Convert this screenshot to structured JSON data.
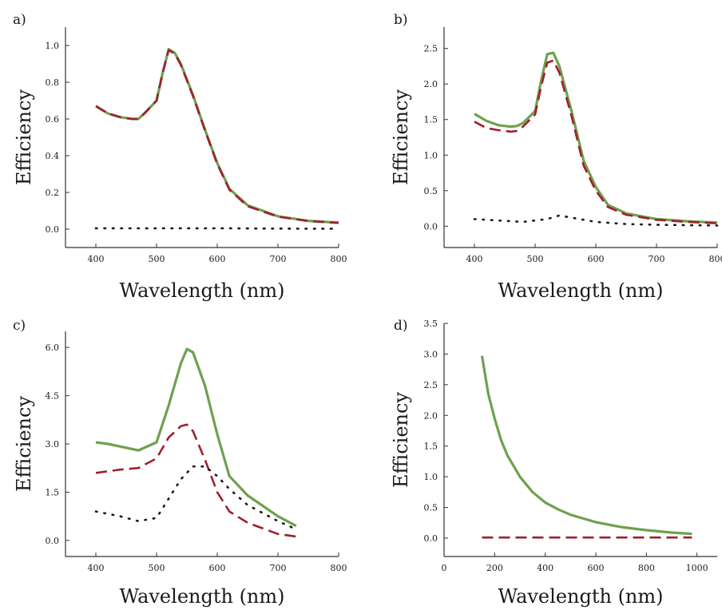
{
  "colors": {
    "solid": "#6fa04f",
    "dashed": "#a01e2e",
    "dotted": "#1a1a1a",
    "axis": "#333333"
  },
  "chart_data": [
    {
      "panel": "a)",
      "type": "line",
      "xlabel": "Wavelength (nm)",
      "ylabel": "Efficiency",
      "xlim": [
        350,
        800
      ],
      "ylim": [
        -0.1,
        1.1
      ],
      "xticks": [
        "400",
        "500",
        "600",
        "700",
        "800"
      ],
      "yticks": [
        "0.0",
        "0.2",
        "0.4",
        "0.6",
        "0.8",
        "1.0"
      ],
      "series": [
        {
          "style": "solid",
          "x": [
            400,
            420,
            440,
            460,
            470,
            480,
            500,
            510,
            520,
            530,
            540,
            560,
            580,
            600,
            620,
            650,
            700,
            750,
            800
          ],
          "y": [
            0.67,
            0.63,
            0.61,
            0.6,
            0.6,
            0.63,
            0.7,
            0.85,
            0.98,
            0.96,
            0.9,
            0.73,
            0.54,
            0.36,
            0.22,
            0.13,
            0.07,
            0.045,
            0.035
          ]
        },
        {
          "style": "dashed",
          "x": [
            400,
            420,
            440,
            460,
            470,
            480,
            500,
            510,
            520,
            530,
            540,
            560,
            580,
            600,
            620,
            650,
            700,
            750,
            800
          ],
          "y": [
            0.67,
            0.63,
            0.61,
            0.6,
            0.6,
            0.63,
            0.7,
            0.85,
            0.975,
            0.955,
            0.895,
            0.725,
            0.535,
            0.355,
            0.215,
            0.125,
            0.068,
            0.044,
            0.034
          ]
        },
        {
          "style": "dotted",
          "x": [
            400,
            500,
            600,
            700,
            800
          ],
          "y": [
            0.005,
            0.005,
            0.005,
            0.003,
            0.002
          ]
        }
      ]
    },
    {
      "panel": "b)",
      "type": "line",
      "xlabel": "Wavelength (nm)",
      "ylabel": "Efficiency",
      "xlim": [
        350,
        800
      ],
      "ylim": [
        -0.3,
        2.8
      ],
      "xticks": [
        "400",
        "500",
        "600",
        "700",
        "800"
      ],
      "yticks": [
        "0.0",
        "0.5",
        "1.0",
        "1.5",
        "2.0",
        "2.5"
      ],
      "series": [
        {
          "style": "solid",
          "x": [
            400,
            420,
            440,
            460,
            470,
            480,
            500,
            510,
            520,
            530,
            540,
            560,
            580,
            600,
            620,
            650,
            700,
            750,
            800
          ],
          "y": [
            1.58,
            1.48,
            1.42,
            1.4,
            1.41,
            1.45,
            1.62,
            2.05,
            2.42,
            2.44,
            2.25,
            1.62,
            0.92,
            0.55,
            0.3,
            0.18,
            0.1,
            0.07,
            0.05
          ]
        },
        {
          "style": "dashed",
          "x": [
            400,
            420,
            440,
            460,
            470,
            480,
            500,
            510,
            520,
            530,
            540,
            560,
            580,
            600,
            620,
            650,
            700,
            750,
            800
          ],
          "y": [
            1.47,
            1.38,
            1.35,
            1.33,
            1.34,
            1.4,
            1.57,
            1.97,
            2.3,
            2.33,
            2.16,
            1.55,
            0.85,
            0.5,
            0.27,
            0.16,
            0.09,
            0.06,
            0.04
          ]
        },
        {
          "style": "dotted",
          "x": [
            400,
            440,
            480,
            520,
            540,
            560,
            600,
            650,
            700,
            750,
            800
          ],
          "y": [
            0.1,
            0.08,
            0.06,
            0.1,
            0.15,
            0.12,
            0.06,
            0.03,
            0.02,
            0.015,
            0.01
          ]
        }
      ]
    },
    {
      "panel": "c)",
      "type": "line",
      "xlabel": "Wavelength (nm)",
      "ylabel": "Efficiency",
      "xlim": [
        350,
        800
      ],
      "ylim": [
        -0.5,
        6.5
      ],
      "xticks": [
        "400",
        "500",
        "600",
        "700",
        "800"
      ],
      "yticks": [
        "0.0",
        "1.5",
        "3.0",
        "4.5",
        "6.0"
      ],
      "series": [
        {
          "style": "solid",
          "x": [
            400,
            420,
            440,
            470,
            500,
            520,
            540,
            550,
            560,
            580,
            600,
            620,
            650,
            700,
            730
          ],
          "y": [
            3.05,
            3.0,
            2.92,
            2.8,
            3.05,
            4.2,
            5.5,
            5.95,
            5.85,
            4.8,
            3.3,
            2.0,
            1.4,
            0.75,
            0.45
          ]
        },
        {
          "style": "dashed",
          "x": [
            400,
            440,
            470,
            500,
            520,
            540,
            550,
            560,
            580,
            600,
            620,
            650,
            700,
            730
          ],
          "y": [
            2.1,
            2.2,
            2.25,
            2.55,
            3.2,
            3.55,
            3.6,
            3.4,
            2.5,
            1.5,
            0.9,
            0.55,
            0.2,
            0.12
          ]
        },
        {
          "style": "dotted",
          "x": [
            400,
            440,
            470,
            500,
            520,
            540,
            560,
            580,
            600,
            620,
            650,
            700,
            730
          ],
          "y": [
            0.9,
            0.75,
            0.6,
            0.7,
            1.3,
            1.9,
            2.3,
            2.3,
            2.0,
            1.6,
            1.1,
            0.6,
            0.35
          ]
        }
      ]
    },
    {
      "panel": "d)",
      "type": "line",
      "xlabel": "Wavelength (nm)",
      "ylabel": "Efficiency",
      "xlim": [
        0,
        1080
      ],
      "ylim": [
        -0.3,
        3.5
      ],
      "xticks": [
        "0",
        "200",
        "400",
        "600",
        "800",
        "1000"
      ],
      "yticks": [
        "0.0",
        "0.5",
        "1.0",
        "1.5",
        "2.0",
        "2.5",
        "3.0",
        "3.5"
      ],
      "series": [
        {
          "style": "solid",
          "x": [
            150,
            175,
            200,
            225,
            250,
            300,
            350,
            400,
            450,
            500,
            600,
            700,
            800,
            900,
            980
          ],
          "y": [
            2.97,
            2.35,
            1.95,
            1.6,
            1.35,
            1.0,
            0.75,
            0.58,
            0.47,
            0.38,
            0.26,
            0.18,
            0.13,
            0.09,
            0.07
          ]
        },
        {
          "style": "dashed",
          "x": [
            150,
            400,
            700,
            980
          ],
          "y": [
            0.01,
            0.01,
            0.01,
            0.01
          ]
        }
      ]
    }
  ]
}
